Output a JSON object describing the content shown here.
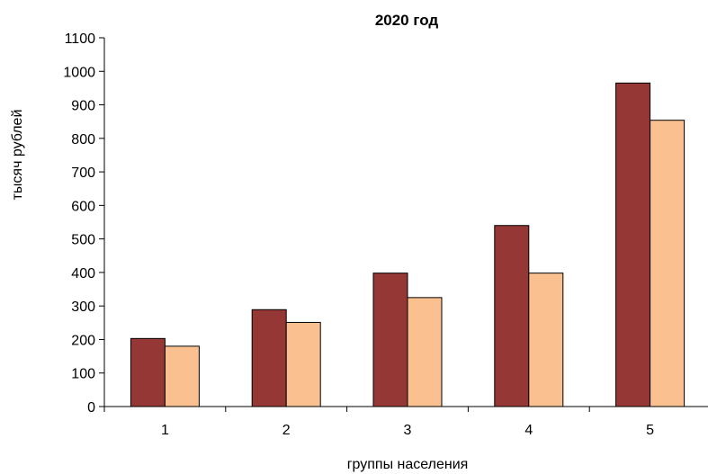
{
  "chart_data": {
    "type": "bar",
    "title": "2020 год",
    "xlabel": "группы населения",
    "ylabel": "тысяч рублей",
    "categories": [
      "1",
      "2",
      "3",
      "4",
      "5"
    ],
    "series": [
      {
        "values": [
          203,
          289,
          398,
          540,
          965
        ],
        "color": "#953735"
      },
      {
        "values": [
          180,
          251,
          325,
          398,
          854
        ],
        "color": "#FAC090"
      }
    ],
    "ylim": [
      0,
      1100
    ],
    "yticks": [
      0,
      100,
      200,
      300,
      400,
      500,
      600,
      700,
      800,
      900,
      1000,
      1100
    ],
    "grid": false,
    "legend": "none"
  }
}
